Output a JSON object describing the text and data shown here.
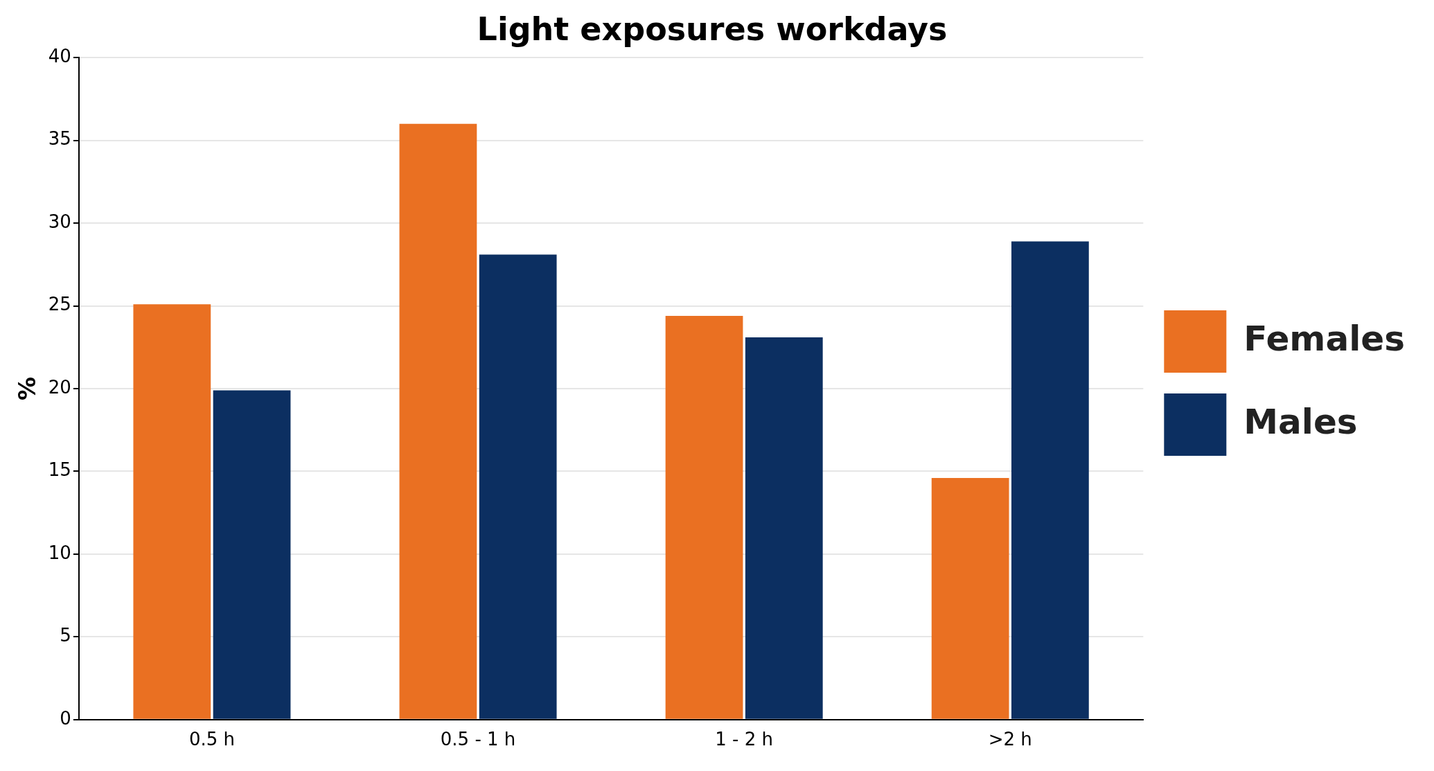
{
  "chart_data": {
    "type": "bar",
    "title": "Light exposures workdays",
    "ylabel": "%",
    "categories": [
      "0.5 h",
      "0.5 - 1 h",
      "1 - 2 h",
      ">2 h"
    ],
    "series": [
      {
        "name": "Females",
        "color": "#ea7022",
        "values": [
          25.1,
          36.0,
          24.4,
          14.6
        ]
      },
      {
        "name": "Males",
        "color": "#0c2f61",
        "values": [
          19.9,
          28.1,
          23.1,
          28.9
        ]
      }
    ],
    "ylim": [
      0,
      40
    ],
    "yticks": [
      0,
      5,
      10,
      15,
      20,
      25,
      30,
      35,
      40
    ],
    "grid": "y",
    "legend": "right"
  }
}
